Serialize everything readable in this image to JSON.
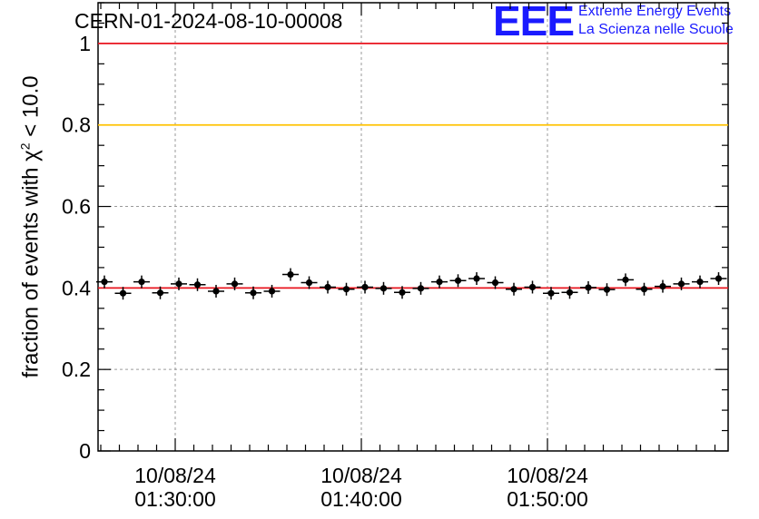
{
  "header": {
    "run_id": "CERN-01-2024-08-10-00008",
    "logo": "EEE",
    "logo_line1": "Extreme Energy Events",
    "logo_line2": "La Scienza nelle Scuole"
  },
  "colors": {
    "upper_ref": "#e8141e",
    "mid_ref": "#ffc200",
    "mean_line": "#e8141e",
    "points": "#000000",
    "logo": "#1a1aff"
  },
  "chart_data": {
    "type": "scatter",
    "ylabel_prefix": "fraction of events with ",
    "ylabel_symbol": "χ",
    "ylabel_sup": "2",
    "ylabel_suffix": " < 10.0",
    "ylim": [
      0,
      1.1
    ],
    "yticks": [
      "0",
      "0.2",
      "0.4",
      "0.6",
      "0.8",
      "1"
    ],
    "xticks": [
      {
        "date": "10/08/24",
        "time": "01:30:00"
      },
      {
        "date": "10/08/24",
        "time": "01:40:00"
      },
      {
        "date": "10/08/24",
        "time": "01:50:00"
      }
    ],
    "grid": true,
    "reference_lines": [
      1.0,
      0.8,
      0.4
    ],
    "points": [
      0.415,
      0.387,
      0.415,
      0.388,
      0.41,
      0.408,
      0.392,
      0.41,
      0.388,
      0.392,
      0.433,
      0.413,
      0.402,
      0.397,
      0.402,
      0.399,
      0.389,
      0.399,
      0.415,
      0.418,
      0.423,
      0.413,
      0.397,
      0.402,
      0.387,
      0.389,
      0.401,
      0.396,
      0.42,
      0.397,
      0.404,
      0.41,
      0.415,
      0.423
    ]
  }
}
